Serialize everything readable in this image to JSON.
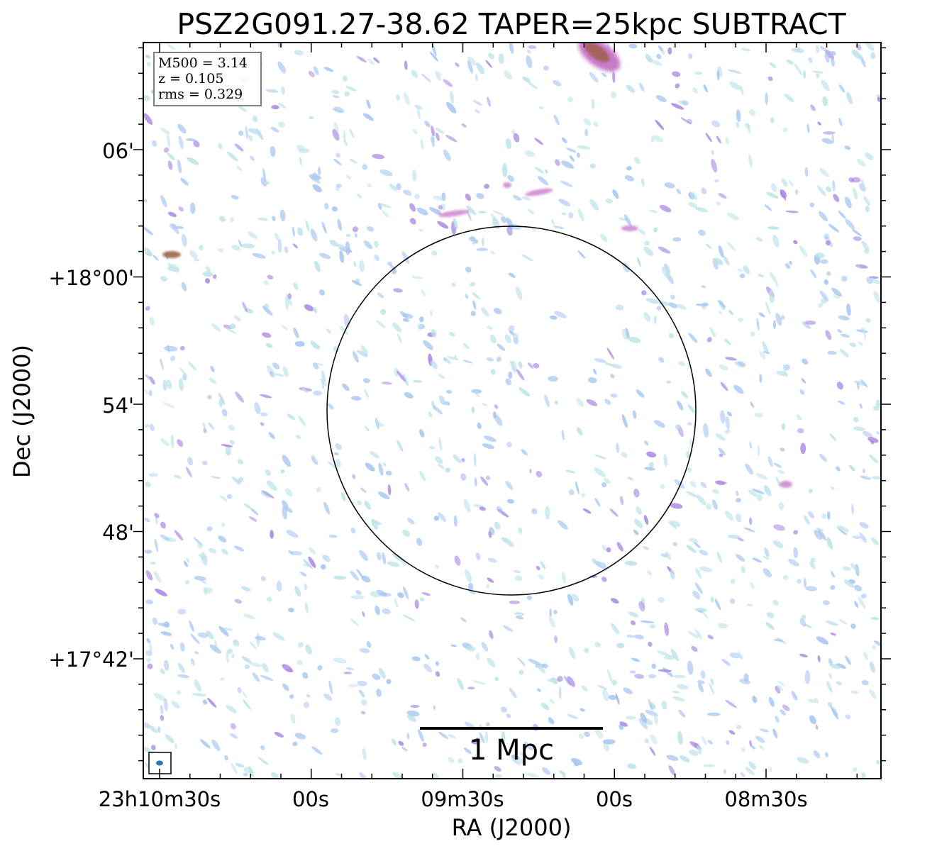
{
  "chart_data": {
    "type": "heatmap",
    "title": "PSZ2G091.27-38.62 TAPER=25kpc SUBTRACT",
    "xlabel": "RA (J2000)",
    "ylabel": "Dec (J2000)",
    "x_ticks": [
      "23h10m30s",
      "00s",
      "09m30s",
      "00s",
      "08m30s"
    ],
    "y_ticks": [
      "06'",
      "+18°00'",
      "54'",
      "48'",
      "+17°42'"
    ],
    "info_box": {
      "m500": "M500 = 3.14",
      "z": "z = 0.105",
      "rms": "rms = 0.329"
    },
    "scalebar_label": "1 Mpc",
    "colors": {
      "noise_light": "#bfe3ea",
      "noise_mid": "#a9c6f0",
      "noise_strong": "#a98be0",
      "source_faint": "#c77ac8",
      "source_bright": "#9a5a3a"
    }
  }
}
